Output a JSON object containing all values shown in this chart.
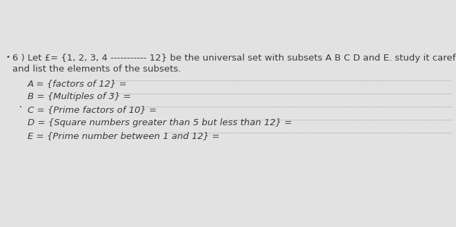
{
  "background_color": "#d8d8d8",
  "paper_color": "#e8e8e8",
  "bullet": "•",
  "title_line1": "6 ) Let £= {1, 2, 3, 4 ----------- 12} be the universal set with subsets A B C D and E. study it carefully",
  "title_line2": "and list the elements of the subsets.",
  "subsets": [
    "A = {factors of 12} = ",
    "B = {Multiples of 3} = ",
    "C = {Prime factors of 10} = ",
    "D = {Square numbers greater than 5 but less than 12} = ",
    "E = {Prime number between 1 and 12} = "
  ],
  "dash_char": "-",
  "font_size_title": 9.5,
  "font_size_subsets": 9.5,
  "text_color": "#3a3a3a",
  "figsize": [
    6.61,
    3.3
  ],
  "dpi": 100
}
